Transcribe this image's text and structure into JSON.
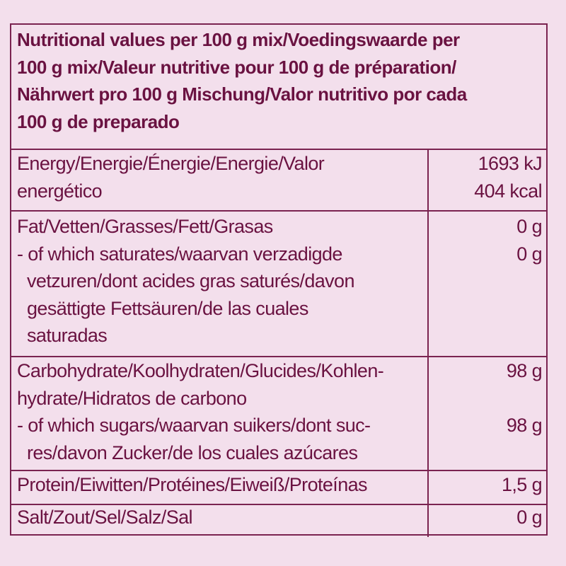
{
  "header": {
    "lines": [
      "Nutritional values per 100 g mix/Voedingswaarde per",
      "100 g mix/Valeur nutritive pour 100 g de préparation/",
      "Nährwert pro 100 g Mischung/Valor nutritivo por cada",
      "100 g de preparado"
    ]
  },
  "rows": [
    {
      "label": [
        "Energy/Energie/Énergie/Energie/Valor",
        "energético"
      ],
      "values": [
        "1693 kJ",
        "404 kcal"
      ]
    },
    {
      "label": [
        "Fat/Vetten/Grasses/Fett/Grasas",
        "- of which saturates/waarvan verzadigde",
        "vetzuren/dont acides gras saturés/davon",
        "gesättigte Fettsäuren/de las cuales",
        "saturadas"
      ],
      "values": [
        "0 g",
        "0 g"
      ]
    },
    {
      "label": [
        "Carbohydrate/Koolhydraten/Glucides/Kohlen-",
        "hydrate/Hidratos de carbono",
        "- of which sugars/waarvan suikers/dont suc-",
        "res/davon Zucker/de los cuales azúcares"
      ],
      "values": [
        "98 g",
        "",
        "98 g"
      ]
    },
    {
      "label": [
        "Protein/Eiwitten/Protéines/Eiweiß/Proteínas"
      ],
      "values": [
        "1,5 g"
      ]
    },
    {
      "label": [
        "Salt/Zout/Sel/Salz/Sal"
      ],
      "values": [
        "0 g"
      ]
    }
  ],
  "colors": {
    "background": "#f3dfec",
    "text": "#6a1241",
    "border": "#7a2350"
  }
}
